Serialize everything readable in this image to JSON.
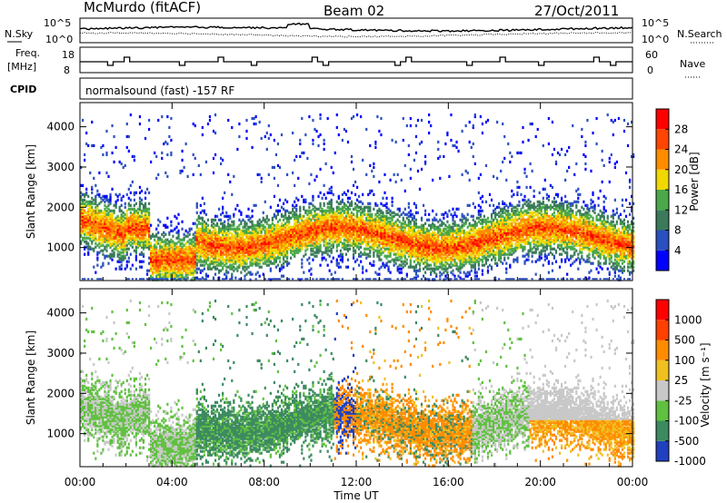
{
  "header": {
    "station": "McMurdo (fitACF)",
    "beam": "Beam 02",
    "date": "27/Oct/2011"
  },
  "top_panels": {
    "nsky_label": "N.Sky",
    "nsky_ticks": [
      "10^5",
      "10^0"
    ],
    "nsearch_label": "N.Search",
    "nsearch_ticks": [
      "10^5",
      "10^0"
    ],
    "freq_label_1": "Freq.",
    "freq_label_2": "[MHz]",
    "freq_ticks": [
      "18",
      "8"
    ],
    "nave_label": "Nave",
    "nave_ticks": [
      "60",
      "0"
    ],
    "cpid_label": "CPID",
    "cpid_text": "normalsound (fast) -157 RF"
  },
  "chart_data": [
    {
      "type": "heatmap",
      "name": "power",
      "ylabel": "Slant Range [km]",
      "ylim": [
        180,
        4600
      ],
      "yticks": [
        1000,
        2000,
        3000,
        4000
      ],
      "colorbar_label": "Power [dB]",
      "colorbar_ticks": [
        "28",
        "24",
        "20",
        "16",
        "12",
        "8",
        "4"
      ],
      "colorbar_colors": [
        "#0000ff",
        "#2a4fc0",
        "#3a7a5a",
        "#4aa84a",
        "#f0d800",
        "#ff8c00",
        "#ff4500",
        "#ff0000"
      ]
    },
    {
      "type": "heatmap",
      "name": "velocity",
      "ylabel": "Slant Range [km]",
      "ylim": [
        180,
        4600
      ],
      "yticks": [
        1000,
        2000,
        3000,
        4000
      ],
      "colorbar_label": "Velocity [m s⁻¹]",
      "colorbar_ticks": [
        "1000",
        "500",
        "100",
        "25",
        "-25",
        "-100",
        "-500",
        "-1000"
      ],
      "colorbar_colors": [
        "#2040c0",
        "#3c8a60",
        "#60c040",
        "#c8c8c8",
        "#f0c020",
        "#ff8c00",
        "#ff4000",
        "#ff0000"
      ]
    }
  ],
  "xaxis": {
    "label": "Time UT",
    "xlim": [
      0,
      24
    ],
    "ticks": [
      "00:00",
      "04:00",
      "08:00",
      "12:00",
      "16:00",
      "20:00",
      "00:00"
    ]
  }
}
